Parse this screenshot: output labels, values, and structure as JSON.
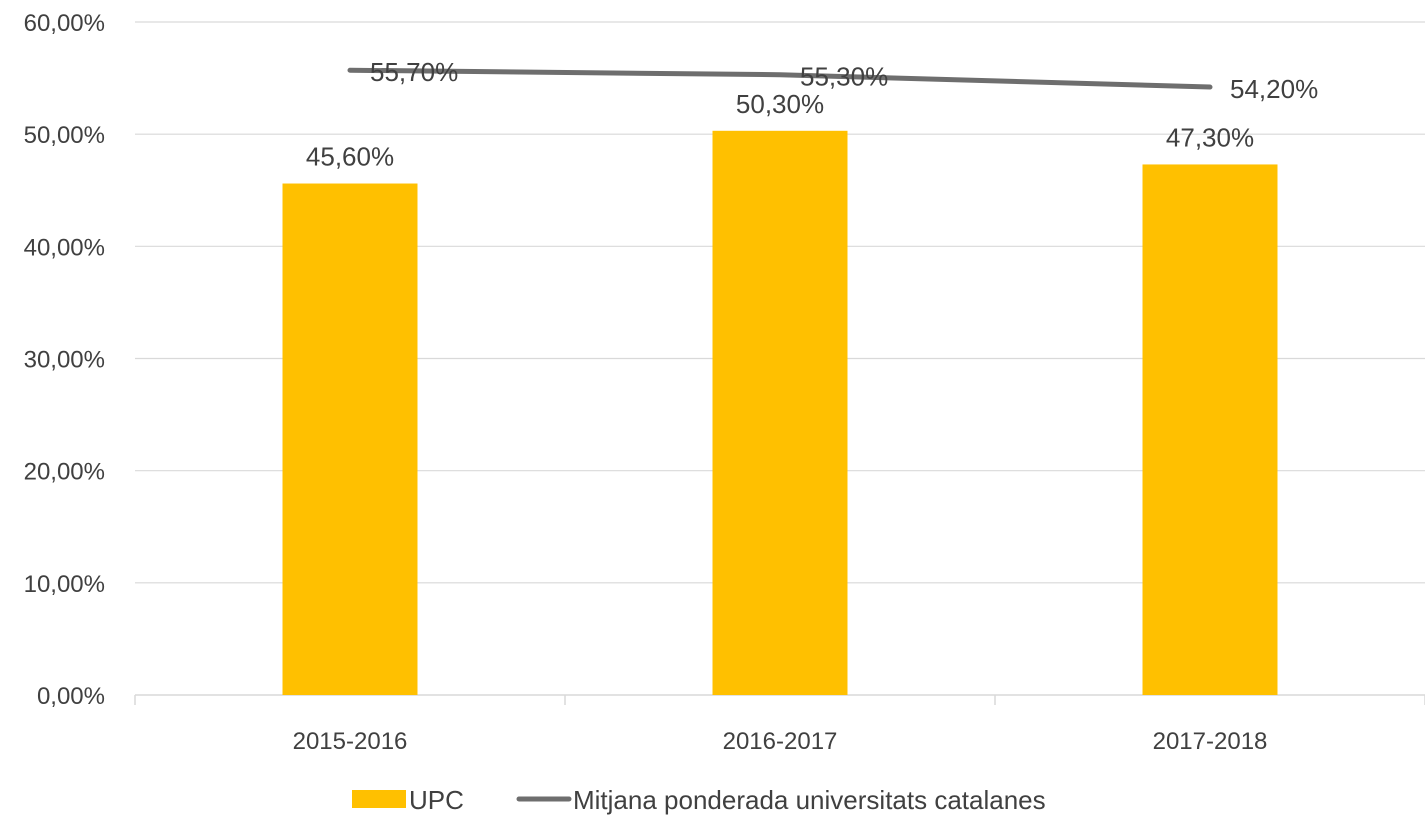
{
  "chart_data": {
    "type": "bar",
    "categories": [
      "2015-2016",
      "2016-2017",
      "2017-2018"
    ],
    "series": [
      {
        "name": "UPC",
        "type": "bar",
        "values": [
          45.6,
          50.3,
          47.3
        ],
        "labels": [
          "45,60%",
          "50,30%",
          "47,30%"
        ],
        "color": "#FFC000"
      },
      {
        "name": "Mitjana ponderada universitats catalanes",
        "type": "line",
        "values": [
          55.7,
          55.3,
          54.2
        ],
        "labels": [
          "55,70%",
          "55,30%",
          "54,20%"
        ],
        "color": "#6E6E6E"
      }
    ],
    "ylim": [
      0,
      60
    ],
    "yticks": [
      0,
      10,
      20,
      30,
      40,
      50,
      60
    ],
    "ytick_labels": [
      "0,00%",
      "10,00%",
      "20,00%",
      "30,00%",
      "40,00%",
      "50,00%",
      "60,00%"
    ],
    "grid": true,
    "legend": "bottom",
    "title": "",
    "xlabel": "",
    "ylabel": ""
  }
}
